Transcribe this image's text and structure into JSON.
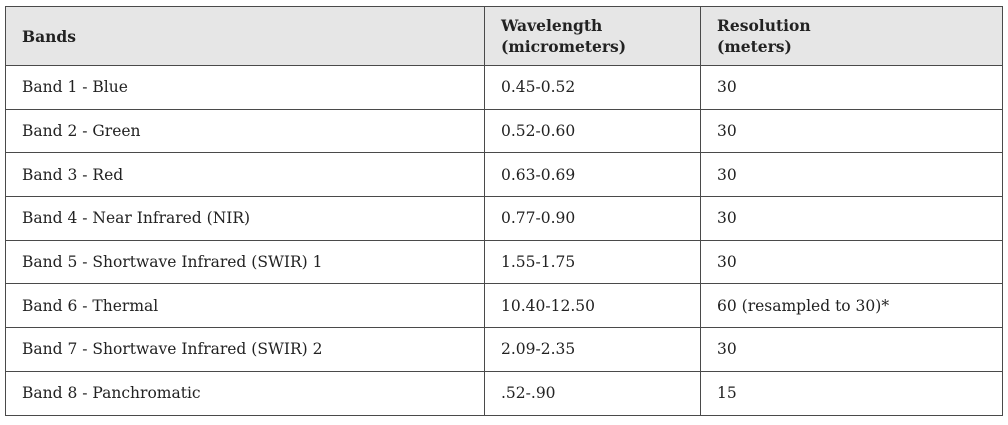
{
  "table": {
    "headers": {
      "bands": "Bands",
      "wavelength_line1": "Wavelength",
      "wavelength_line2": "(micrometers)",
      "resolution_line1": "Resolution",
      "resolution_line2": "(meters)"
    },
    "rows": [
      {
        "band": "Band 1 - Blue",
        "wavelength": "0.45-0.52",
        "resolution": "30"
      },
      {
        "band": "Band 2 - Green",
        "wavelength": "0.52-0.60",
        "resolution": "30"
      },
      {
        "band": "Band 3 - Red",
        "wavelength": "0.63-0.69",
        "resolution": "30"
      },
      {
        "band": "Band 4 - Near Infrared (NIR)",
        "wavelength": "0.77-0.90",
        "resolution": "30"
      },
      {
        "band": "Band 5 - Shortwave Infrared (SWIR) 1",
        "wavelength": "1.55-1.75",
        "resolution": "30"
      },
      {
        "band": "Band 6 - Thermal",
        "wavelength": "10.40-12.50",
        "resolution": "60 (resampled to 30)*"
      },
      {
        "band": "Band 7 - Shortwave Infrared (SWIR) 2",
        "wavelength": "2.09-2.35",
        "resolution": "30"
      },
      {
        "band": "Band 8 - Panchromatic",
        "wavelength": ".52-.90",
        "resolution": "15"
      }
    ]
  }
}
